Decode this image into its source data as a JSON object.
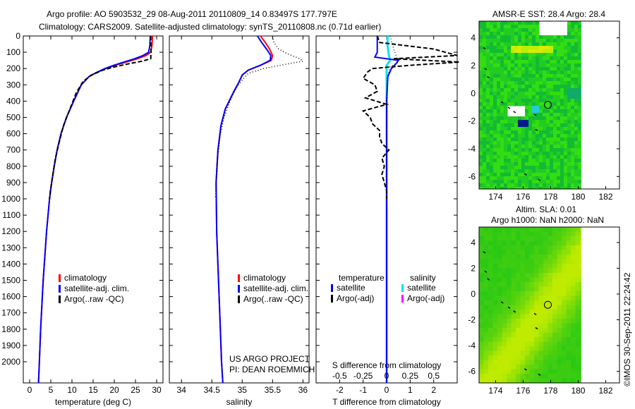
{
  "title": {
    "line1": "Argo profile: AO 5903532_29 08-Aug-2011 20110809_14 0.83497S 177.797E",
    "line2": "Climatology: CARS2009. Satellite-adjusted climatology: synTS_20110808.nc (0.71d earlier)"
  },
  "credit": "©IMOS 30-Sep-2011 22:24:42",
  "project": {
    "line1": "US ARGO PROJECT",
    "line2": "PI: DEAN ROEMMICH"
  },
  "colors": {
    "climatology": "#ff0000",
    "satellite": "#0000ff",
    "argo": "#000000",
    "sal_satellite": "#00e5ee",
    "sal_argo": "#ff00ff"
  },
  "chart_data": [
    {
      "type": "line",
      "name": "temperature",
      "xlabel": "temperature (deg C)",
      "xlim": [
        -1.5,
        31.5
      ],
      "xticks": [
        0,
        5,
        10,
        15,
        20,
        25,
        30
      ],
      "ylim": [
        0,
        2130
      ],
      "yticks": [
        0,
        100,
        200,
        300,
        400,
        500,
        600,
        700,
        800,
        900,
        1000,
        1100,
        1200,
        1300,
        1400,
        1500,
        1600,
        1700,
        1800,
        1900,
        2000
      ],
      "legend": [
        "climatology",
        "satellite-adj. clim.",
        "Argo(..raw -QC)"
      ],
      "series": [
        {
          "name": "climatology",
          "depth": [
            0,
            60,
            100,
            120,
            140,
            160,
            180,
            200,
            225,
            250,
            300,
            400,
            500,
            600,
            700,
            800,
            900,
            1000,
            1200,
            1500,
            1800,
            2000,
            2130
          ],
          "values": [
            29.0,
            28.9,
            28.6,
            27.5,
            25.5,
            22.8,
            20.2,
            18,
            15.8,
            14,
            12.2,
            10.4,
            8.7,
            7.4,
            6.5,
            5.8,
            5.2,
            4.7,
            4.0,
            3.2,
            2.6,
            2.3,
            2.1
          ]
        },
        {
          "name": "satellite-adj. clim.",
          "depth": [
            0,
            60,
            100,
            120,
            140,
            160,
            180,
            200,
            225,
            250,
            300,
            400,
            500,
            600,
            700,
            800,
            900,
            1000,
            1200,
            1500,
            1800,
            2000,
            2130
          ],
          "values": [
            28.5,
            28.4,
            28.1,
            26.8,
            24.8,
            22.3,
            19.9,
            17.8,
            15.7,
            14,
            12.2,
            10.4,
            8.7,
            7.4,
            6.5,
            5.8,
            5.2,
            4.7,
            4.0,
            3.2,
            2.6,
            2.3,
            2.1
          ]
        },
        {
          "name": "Argo(..raw -QC)",
          "depth": [
            0,
            60,
            100,
            140,
            155,
            170,
            190,
            210,
            240,
            280,
            350,
            450,
            550,
            650,
            750,
            850,
            950,
            1000
          ],
          "values": [
            28.6,
            28.6,
            28.7,
            28.6,
            26.5,
            23.5,
            20,
            17.3,
            14.6,
            12.6,
            11.0,
            9.5,
            8.0,
            7.0,
            6.1,
            5.5,
            4.9,
            4.7
          ]
        }
      ]
    },
    {
      "type": "line",
      "name": "salinity",
      "xlabel": "salinity",
      "xlim": [
        33.8,
        36.1
      ],
      "xticks": [
        34,
        34.5,
        35,
        35.5,
        36
      ],
      "ylim": [
        0,
        2130
      ],
      "legend": [
        "climatology",
        "satellite-adj. clim.",
        "Argo(..raw -QC)"
      ],
      "series": [
        {
          "name": "climatology",
          "depth": [
            0,
            40,
            80,
            120,
            150,
            180,
            210,
            240,
            280,
            350,
            450,
            550,
            700,
            900,
            1200,
            1500,
            1800,
            2000,
            2130
          ],
          "values": [
            35.3,
            35.38,
            35.45,
            35.5,
            35.48,
            35.3,
            35.1,
            35.0,
            34.95,
            34.85,
            34.72,
            34.65,
            34.6,
            34.57,
            34.58,
            34.61,
            34.64,
            34.66,
            34.68
          ]
        },
        {
          "name": "satellite-adj. clim.",
          "depth": [
            0,
            40,
            80,
            120,
            150,
            180,
            210,
            240,
            280,
            350,
            450,
            550,
            700,
            900,
            1200,
            1500,
            1800,
            2000,
            2130
          ],
          "values": [
            35.25,
            35.32,
            35.4,
            35.47,
            35.46,
            35.3,
            35.1,
            35.0,
            34.95,
            34.85,
            34.72,
            34.65,
            34.6,
            34.57,
            34.58,
            34.61,
            34.64,
            34.66,
            34.68
          ]
        },
        {
          "name": "Argo(..raw -QC)",
          "depth": [
            0,
            40,
            80,
            110,
            140,
            155,
            175,
            200,
            230,
            270,
            320,
            400,
            500,
            600,
            800,
            1000
          ],
          "values": [
            35.5,
            35.52,
            35.6,
            35.75,
            35.95,
            36.0,
            35.7,
            35.35,
            35.1,
            35.0,
            34.9,
            34.8,
            34.7,
            34.64,
            34.58,
            34.56
          ]
        }
      ]
    },
    {
      "type": "line",
      "name": "differences",
      "xlabel": "T difference from climatology",
      "x2label": "S difference from climatology",
      "xlim": [
        -3,
        3
      ],
      "xticks": [
        -2,
        -1,
        0,
        1,
        2
      ],
      "x2ticks": [
        "-0.5",
        "-0.25",
        "0",
        "0.25",
        "0.5"
      ],
      "ylim": [
        0,
        2130
      ],
      "legend": {
        "temperature_header": "temperature",
        "salinity_header": "salinity",
        "t_sat": "satellite",
        "t_argo": "Argo(-adj)",
        "s_sat": "satellite",
        "s_argo": "Argo(-adj)"
      },
      "series": [
        {
          "name": "T satellite",
          "depth": [
            0,
            60,
            100,
            130,
            150,
            170,
            200,
            250,
            400,
            700,
            1000,
            1500,
            2130
          ],
          "values": [
            -0.4,
            -0.4,
            -0.4,
            -0.5,
            0.5,
            0.4,
            0.2,
            0.05,
            0.0,
            0.0,
            0.0,
            0.0,
            0.0
          ]
        },
        {
          "name": "T Argo(-adj)",
          "depth": [
            0,
            40,
            80,
            120,
            140,
            160,
            180,
            200,
            220,
            260,
            300,
            340,
            380,
            420,
            460,
            500,
            540,
            580,
            620,
            660,
            700,
            750,
            800,
            850,
            900,
            950,
            1000
          ],
          "values": [
            -0.4,
            -0.3,
            2.0,
            3.0,
            0.3,
            3.1,
            1.0,
            -0.6,
            -0.8,
            -1.0,
            -0.5,
            -0.4,
            -0.9,
            0.0,
            -1.0,
            -0.7,
            -0.6,
            -0.3,
            -0.3,
            -0.2,
            0.1,
            -0.2,
            -0.1,
            -0.2,
            -0.1,
            0.0,
            0.0
          ]
        },
        {
          "name": "S satellite",
          "depth": [
            0,
            60,
            120,
            150,
            180,
            250,
            400,
            700,
            1000,
            1500,
            2130
          ],
          "values": [
            0.04,
            0.04,
            0.1,
            0.15,
            0.0,
            0.0,
            0.0,
            0.0,
            0.0,
            0.0,
            0.0
          ]
        },
        {
          "name": "S Argo(-adj)",
          "depth": [
            0,
            80,
            140,
            160,
            190,
            260,
            400,
            700,
            1000
          ],
          "values": [
            0.15,
            0.3,
            0.45,
            0.5,
            0.15,
            0.02,
            0.01,
            0.0,
            0.0
          ]
        }
      ]
    },
    {
      "type": "heatmap",
      "name": "sst-map",
      "title": "AMSR-E SST: 28.4 Argo: 28.4",
      "xticks": [
        174,
        176,
        178,
        180,
        182
      ],
      "yticks": [
        4,
        2,
        0,
        -2,
        -4,
        -6
      ],
      "xlim": [
        172.8,
        183
      ],
      "ylim": [
        -6.9,
        5.2
      ],
      "marker": {
        "lon": 177.797,
        "lat": -0.835
      }
    },
    {
      "type": "heatmap",
      "name": "sla-map",
      "title1": "Altim. SLA: 0.01",
      "title2": "Argo h1000: NaN h2000: NaN",
      "xticks": [
        174,
        176,
        178,
        180,
        182
      ],
      "yticks": [
        4,
        2,
        0,
        -2,
        -4,
        -6
      ],
      "xlim": [
        172.8,
        183
      ],
      "ylim": [
        -6.9,
        5.2
      ],
      "marker": {
        "lon": 177.797,
        "lat": -0.835
      }
    }
  ]
}
